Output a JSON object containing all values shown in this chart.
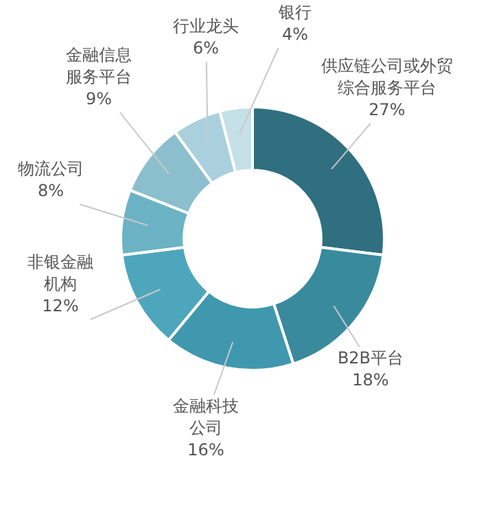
{
  "chart_data": {
    "type": "donut",
    "categories": [
      "供应链公司或外贸综合服务平台",
      "B2B平台",
      "金融科技公司",
      "非银金融机构",
      "物流公司",
      "金融信息服务平台",
      "行业龙头",
      "银行"
    ],
    "values": [
      27,
      18,
      16,
      12,
      8,
      9,
      6,
      4
    ],
    "colors": [
      "#2f6f80",
      "#3a8a9e",
      "#4098ae",
      "#4ea6bd",
      "#6cb2c5",
      "#8cbfce",
      "#a9d0dc",
      "#c6e0e8"
    ],
    "value_labels": [
      "27%",
      "18%",
      "16%",
      "12%",
      "8%",
      "9%",
      "6%",
      "4%"
    ]
  }
}
